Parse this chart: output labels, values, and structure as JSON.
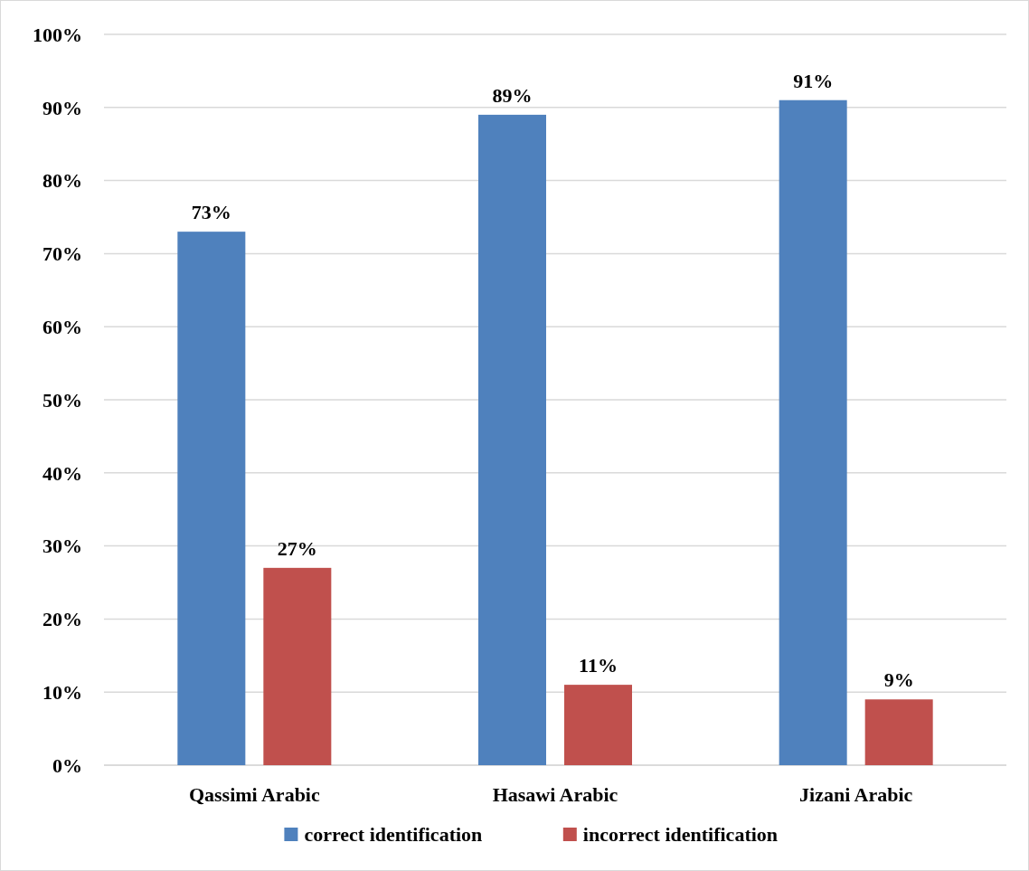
{
  "chart_data": {
    "type": "bar",
    "categories": [
      "Qassimi Arabic",
      "Hasawi Arabic",
      "Jizani Arabic"
    ],
    "series": [
      {
        "name": "correct identification",
        "color": "#4f81bd",
        "values": [
          73,
          89,
          91
        ],
        "value_labels": [
          "73%",
          "89%",
          "91%"
        ]
      },
      {
        "name": "incorrect identification",
        "color": "#c0504d",
        "values": [
          27,
          11,
          9
        ],
        "value_labels": [
          "27%",
          "11%",
          "9%"
        ]
      }
    ],
    "ylim": [
      0,
      100
    ],
    "yticks": [
      {
        "value": 0,
        "label": "0%"
      },
      {
        "value": 10,
        "label": "10%"
      },
      {
        "value": 20,
        "label": "20%"
      },
      {
        "value": 30,
        "label": "30%"
      },
      {
        "value": 40,
        "label": "40%"
      },
      {
        "value": 50,
        "label": "50%"
      },
      {
        "value": 60,
        "label": "60%"
      },
      {
        "value": 70,
        "label": "70%"
      },
      {
        "value": 80,
        "label": "80%"
      },
      {
        "value": 90,
        "label": "90%"
      },
      {
        "value": 100,
        "label": "100%"
      }
    ],
    "grid": "y",
    "legend": "bottom"
  }
}
